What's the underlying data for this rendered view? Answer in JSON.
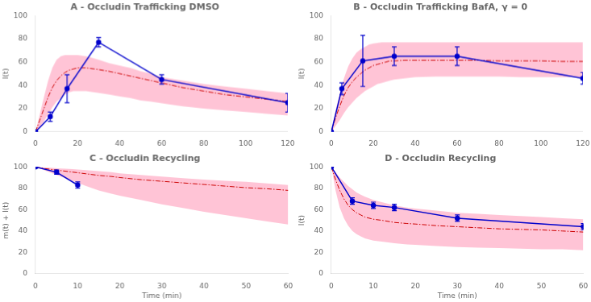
{
  "chart_data": [
    {
      "type": "line",
      "title": "A - Occludin Trafficking DMSO",
      "ylabel": "I(t)",
      "xlim": [
        0,
        120
      ],
      "ylim": [
        0,
        100
      ],
      "xticks": [
        0,
        20,
        40,
        60,
        80,
        100,
        120
      ],
      "yticks": [
        0,
        20,
        40,
        60,
        80,
        100
      ],
      "grid": false,
      "series": [
        {
          "type": "area",
          "color": "#FFB0C8",
          "x": [
            0,
            2,
            4,
            6,
            8,
            10,
            12,
            14,
            16,
            18,
            20,
            22,
            24,
            26,
            28,
            30,
            35,
            40,
            45,
            50,
            55,
            60,
            70,
            80,
            90,
            100,
            110,
            120
          ],
          "lower": [
            0,
            4,
            9,
            15,
            21,
            26,
            29,
            32,
            34,
            35,
            35,
            35,
            35,
            34.5,
            34,
            33.5,
            32,
            30.5,
            29,
            27,
            26,
            24.5,
            22,
            20,
            18.5,
            17,
            15.5,
            14
          ],
          "upper": [
            0,
            15,
            30,
            44,
            55,
            62,
            65,
            66,
            66,
            66,
            66,
            65.5,
            65,
            64,
            63,
            62,
            59,
            57,
            55,
            52,
            50,
            47,
            44,
            41,
            39,
            37,
            35,
            33
          ]
        },
        {
          "type": "line",
          "color": "#CC0000",
          "line_style": "dashdot",
          "x": [
            0,
            2,
            4,
            6,
            8,
            10,
            12,
            14,
            16,
            18,
            20,
            22,
            24,
            26,
            28,
            30,
            35,
            40,
            45,
            50,
            55,
            60,
            70,
            80,
            90,
            100,
            110,
            120
          ],
          "values": [
            0,
            10,
            20,
            30,
            38,
            44,
            48,
            51,
            53,
            54,
            55,
            55,
            55,
            54.5,
            54,
            53.5,
            52,
            50,
            48,
            46,
            44,
            42,
            38,
            35,
            32,
            30,
            28,
            26
          ]
        },
        {
          "type": "line",
          "color": "#0000CC",
          "line_style": "solid",
          "marker": "circle",
          "x": [
            0,
            7,
            15,
            30,
            60,
            120
          ],
          "values": [
            0,
            13,
            37,
            77,
            45,
            25
          ],
          "yerr": [
            0,
            4,
            12,
            4,
            4,
            8
          ]
        }
      ]
    },
    {
      "type": "line",
      "title": "B - Occludin Trafficking BafA, γ = 0",
      "ylabel": "I(t)",
      "xlim": [
        0,
        120
      ],
      "ylim": [
        0,
        100
      ],
      "xticks": [
        0,
        20,
        40,
        60,
        80,
        100,
        120
      ],
      "yticks": [
        0,
        20,
        40,
        60,
        80,
        100
      ],
      "grid": false,
      "series": [
        {
          "type": "area",
          "color": "#FFB0C8",
          "x": [
            0,
            2,
            4,
            6,
            8,
            10,
            12,
            14,
            16,
            18,
            20,
            22,
            24,
            26,
            28,
            30,
            35,
            40,
            50,
            60,
            70,
            80,
            90,
            100,
            110,
            120
          ],
          "lower": [
            0,
            5,
            10,
            16,
            21,
            25,
            29,
            32,
            35,
            37,
            39,
            41,
            42,
            43,
            44,
            45,
            46,
            47,
            47.5,
            47.5,
            47.5,
            47.5,
            47,
            47,
            47,
            47
          ],
          "upper": [
            0,
            18,
            33,
            46,
            56,
            63,
            68,
            71,
            73,
            75,
            76,
            76.5,
            77,
            77,
            77,
            77,
            77,
            77,
            77,
            77,
            77,
            77,
            77,
            77,
            77,
            77
          ]
        },
        {
          "type": "line",
          "color": "#CC0000",
          "line_style": "dashdot",
          "x": [
            0,
            2,
            4,
            6,
            8,
            10,
            12,
            14,
            16,
            18,
            20,
            22,
            24,
            26,
            28,
            30,
            35,
            40,
            50,
            60,
            70,
            80,
            90,
            100,
            110,
            120
          ],
          "values": [
            0,
            12,
            22,
            31,
            38,
            43,
            47,
            50,
            53,
            55,
            57,
            58,
            59,
            60,
            61,
            61,
            61.5,
            61.5,
            61.5,
            61.5,
            61.5,
            61,
            61,
            61,
            60.5,
            60.5
          ]
        },
        {
          "type": "line",
          "color": "#0000CC",
          "line_style": "solid",
          "marker": "circle",
          "x": [
            0,
            5,
            15,
            30,
            60,
            120
          ],
          "values": [
            0,
            37,
            61,
            65,
            65,
            46
          ],
          "yerr": [
            0,
            5,
            22,
            8,
            8,
            5
          ]
        }
      ]
    },
    {
      "type": "line",
      "title": "C - Occludin Recycling",
      "xlabel": "Time (min)",
      "ylabel": "m(t) + I(t)",
      "xlim": [
        0,
        60
      ],
      "ylim": [
        0,
        100
      ],
      "xticks": [
        0,
        10,
        20,
        30,
        40,
        50,
        60
      ],
      "yticks": [
        0,
        20,
        40,
        60,
        80,
        100
      ],
      "grid": false,
      "series": [
        {
          "type": "area",
          "color": "#FFB0C8",
          "x": [
            0,
            2,
            4,
            6,
            8,
            10,
            12,
            15,
            18,
            20,
            25,
            30,
            35,
            40,
            45,
            50,
            55,
            60
          ],
          "lower": [
            100,
            97,
            94,
            91,
            88,
            85,
            82,
            78,
            75,
            73,
            69,
            65,
            61.5,
            58,
            55,
            52,
            49,
            46
          ],
          "upper": [
            100,
            99.5,
            99,
            98.5,
            98,
            97.5,
            97,
            96,
            95,
            94,
            92.5,
            91,
            89.5,
            88,
            87,
            86,
            84.5,
            83
          ]
        },
        {
          "type": "line",
          "color": "#CC0000",
          "line_style": "dashdot",
          "x": [
            0,
            2,
            4,
            6,
            8,
            10,
            12,
            15,
            18,
            20,
            25,
            30,
            35,
            40,
            45,
            50,
            55,
            60
          ],
          "values": [
            100,
            98.5,
            97.5,
            96.5,
            95.5,
            94.5,
            93.5,
            92,
            91,
            90,
            88,
            86.5,
            85,
            83.5,
            82,
            80.5,
            79.5,
            78
          ]
        },
        {
          "type": "line",
          "color": "#0000CC",
          "line_style": "solid",
          "marker": "circle",
          "x": [
            0,
            5,
            10
          ],
          "values": [
            100,
            95,
            83
          ],
          "yerr": [
            0,
            2,
            3
          ]
        }
      ]
    },
    {
      "type": "line",
      "title": "D - Occludin Recycling",
      "xlabel": "Time (min)",
      "ylabel": "I(t)",
      "xlim": [
        0,
        60
      ],
      "ylim": [
        0,
        100
      ],
      "xticks": [
        0,
        10,
        20,
        30,
        40,
        50,
        60
      ],
      "yticks": [
        0,
        20,
        40,
        60,
        80,
        100
      ],
      "grid": false,
      "series": [
        {
          "type": "area",
          "color": "#FFB0C8",
          "x": [
            0,
            1,
            2,
            3,
            4,
            5,
            6,
            7,
            8,
            10,
            12,
            15,
            18,
            20,
            25,
            30,
            35,
            40,
            45,
            50,
            55,
            60
          ],
          "lower": [
            100,
            78,
            62,
            52,
            45,
            40,
            37,
            35,
            33,
            31,
            30,
            28.5,
            27.5,
            27,
            26,
            25,
            24.5,
            24,
            23.5,
            23,
            23,
            22
          ],
          "upper": [
            100,
            95,
            90,
            86,
            82,
            79,
            76,
            74,
            72,
            69,
            67,
            64,
            62,
            61,
            59,
            57,
            56,
            55,
            54,
            53,
            52,
            51
          ]
        },
        {
          "type": "line",
          "color": "#CC0000",
          "line_style": "dashdot",
          "x": [
            0,
            1,
            2,
            3,
            4,
            5,
            6,
            7,
            8,
            10,
            12,
            15,
            18,
            20,
            25,
            30,
            35,
            40,
            45,
            50,
            55,
            60
          ],
          "values": [
            100,
            88,
            78,
            70,
            64,
            60,
            57,
            55,
            53,
            51,
            50,
            48,
            47,
            46.5,
            45,
            44,
            43,
            42,
            41.5,
            41,
            40,
            39
          ]
        },
        {
          "type": "line",
          "color": "#0000CC",
          "line_style": "solid",
          "marker": "circle",
          "x": [
            0,
            5,
            10,
            15,
            30,
            60
          ],
          "values": [
            100,
            68,
            64,
            62,
            52,
            44
          ],
          "yerr": [
            0,
            3,
            3,
            3,
            3,
            3
          ]
        }
      ]
    }
  ]
}
